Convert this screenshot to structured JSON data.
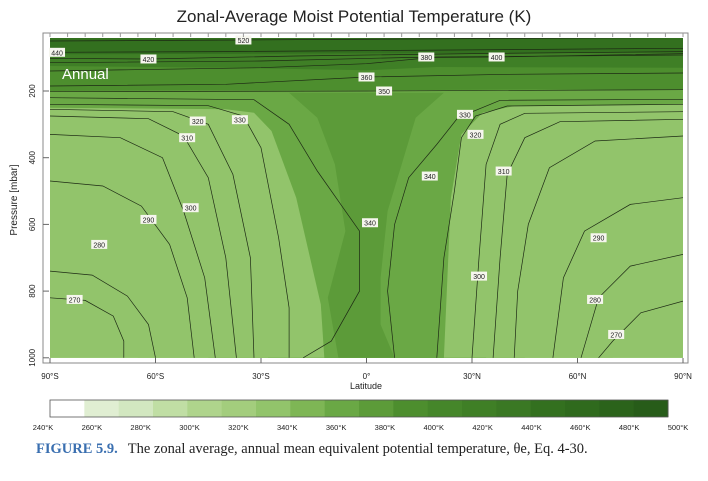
{
  "chart_data": {
    "type": "contour",
    "title": "Zonal-Average Moist Potential Temperature (K)",
    "panel_label": "Annual",
    "xlabel": "Latitude",
    "ylabel": "Pressure [mbar]",
    "xlim": [
      -90,
      90
    ],
    "ylim": [
      40,
      1000
    ],
    "y_inverted": true,
    "x_ticks": [
      {
        "value": -90,
        "label": "90°S"
      },
      {
        "value": -60,
        "label": "60°S"
      },
      {
        "value": -30,
        "label": "30°S"
      },
      {
        "value": 0,
        "label": "0°"
      },
      {
        "value": 30,
        "label": "30°N"
      },
      {
        "value": 60,
        "label": "60°N"
      },
      {
        "value": 90,
        "label": "90°N"
      }
    ],
    "y_ticks": [
      {
        "value": 200,
        "label": "200"
      },
      {
        "value": 400,
        "label": "400"
      },
      {
        "value": 600,
        "label": "600"
      },
      {
        "value": 800,
        "label": "800"
      },
      {
        "value": 1000,
        "label": "1000"
      }
    ],
    "fill_regions": [
      {
        "level": "270-280",
        "color": "#d6e8c4",
        "points": [
          [
            -90,
            810
          ],
          [
            -80,
            815
          ],
          [
            -72,
            860
          ],
          [
            -66,
            930
          ],
          [
            -65,
            1000
          ],
          [
            -90,
            1000
          ]
        ]
      },
      {
        "level": "280-300",
        "color": "#c0dea4",
        "points": [
          [
            -90,
            300
          ],
          [
            -70,
            310
          ],
          [
            -58,
            380
          ],
          [
            -50,
            520
          ],
          [
            -46,
            760
          ],
          [
            -45,
            1000
          ],
          [
            -90,
            1000
          ]
        ]
      },
      {
        "level": "300-320",
        "color": "#a9d185",
        "points": [
          [
            -90,
            290
          ],
          [
            -60,
            295
          ],
          [
            -40,
            330
          ],
          [
            -33,
            440
          ],
          [
            -30,
            800
          ],
          [
            -28,
            1000
          ],
          [
            -90,
            1000
          ]
        ]
      },
      {
        "level": "320-340",
        "color": "#92c46b",
        "points": [
          [
            -90,
            250
          ],
          [
            -40,
            255
          ],
          [
            -32,
            265
          ],
          [
            -27,
            320
          ],
          [
            -20,
            520
          ],
          [
            -13,
            840
          ],
          [
            -12,
            1000
          ],
          [
            -90,
            1000
          ]
        ]
      },
      {
        "level": "270-280",
        "color": "#d6e8c4",
        "points": [
          [
            90,
            860
          ],
          [
            80,
            880
          ],
          [
            72,
            950
          ],
          [
            70,
            1000
          ],
          [
            90,
            1000
          ]
        ]
      },
      {
        "level": "280-300",
        "color": "#c0dea4",
        "points": [
          [
            90,
            420
          ],
          [
            65,
            440
          ],
          [
            52,
            560
          ],
          [
            47,
            760
          ],
          [
            45,
            1000
          ],
          [
            90,
            1000
          ]
        ]
      },
      {
        "level": "300-320",
        "color": "#a9d185",
        "points": [
          [
            90,
            290
          ],
          [
            55,
            300
          ],
          [
            42,
            350
          ],
          [
            37,
            560
          ],
          [
            34,
            1000
          ],
          [
            90,
            1000
          ]
        ]
      },
      {
        "level": "320-340",
        "color": "#92c46b",
        "points": [
          [
            90,
            240
          ],
          [
            42,
            245
          ],
          [
            33,
            265
          ],
          [
            27,
            330
          ],
          [
            24,
            520
          ],
          [
            22,
            1000
          ],
          [
            90,
            1000
          ]
        ]
      },
      {
        "level": "350-360",
        "color": "#5c9b39",
        "points": [
          [
            -22,
            205
          ],
          [
            22,
            205
          ],
          [
            14,
            280
          ],
          [
            10,
            420
          ],
          [
            6,
            560
          ],
          [
            4,
            760
          ],
          [
            4,
            900
          ],
          [
            8,
            1000
          ],
          [
            -8,
            1000
          ],
          [
            -11,
            820
          ],
          [
            -6,
            620
          ],
          [
            -9,
            420
          ],
          [
            -14,
            280
          ]
        ]
      },
      {
        "level": "360-380",
        "color": "#4d8e2e",
        "points": [
          [
            -90,
            40
          ],
          [
            90,
            40
          ],
          [
            90,
            195
          ],
          [
            -90,
            200
          ]
        ]
      },
      {
        "level": "380-400",
        "color": "#3f7f26",
        "points": [
          [
            -90,
            40
          ],
          [
            90,
            40
          ],
          [
            90,
            130
          ],
          [
            20,
            128
          ],
          [
            0,
            138
          ],
          [
            -40,
            130
          ],
          [
            -90,
            125
          ]
        ]
      },
      {
        "level": "420-440",
        "color": "#33701f",
        "points": [
          [
            -90,
            40
          ],
          [
            90,
            40
          ],
          [
            90,
            85
          ],
          [
            -90,
            90
          ]
        ]
      }
    ],
    "contours": [
      {
        "value": 270,
        "points": [
          [
            -90,
            820
          ],
          [
            -80,
            828
          ],
          [
            -72,
            875
          ],
          [
            -69,
            950
          ],
          [
            -69,
            1000
          ]
        ]
      },
      {
        "value": 280,
        "points": [
          [
            -90,
            740
          ],
          [
            -78,
            752
          ],
          [
            -68,
            815
          ],
          [
            -62,
            900
          ],
          [
            -60,
            1000
          ]
        ]
      },
      {
        "value": 290,
        "points": [
          [
            -90,
            470
          ],
          [
            -75,
            485
          ],
          [
            -64,
            545
          ],
          [
            -56,
            660
          ],
          [
            -51,
            820
          ],
          [
            -49,
            1000
          ]
        ]
      },
      {
        "value": 300,
        "points": [
          [
            -90,
            330
          ],
          [
            -70,
            340
          ],
          [
            -58,
            400
          ],
          [
            -52,
            560
          ],
          [
            -46,
            760
          ],
          [
            -43,
            1000
          ]
        ]
      },
      {
        "value": 310,
        "points": [
          [
            -90,
            275
          ],
          [
            -62,
            283
          ],
          [
            -52,
            335
          ],
          [
            -45,
            460
          ],
          [
            -40,
            700
          ],
          [
            -37,
            1000
          ]
        ]
      },
      {
        "value": 320,
        "points": [
          [
            -90,
            255
          ],
          [
            -55,
            262
          ],
          [
            -45,
            300
          ],
          [
            -38,
            450
          ],
          [
            -33,
            700
          ],
          [
            -32,
            1000
          ]
        ]
      },
      {
        "value": 330,
        "points": [
          [
            -90,
            240
          ],
          [
            -45,
            244
          ],
          [
            -35,
            275
          ],
          [
            -30,
            370
          ],
          [
            -25,
            640
          ],
          [
            -22,
            850
          ],
          [
            -22,
            1000
          ]
        ]
      },
      {
        "value": 340,
        "points": [
          [
            -90,
            220
          ],
          [
            -32,
            226
          ],
          [
            -22,
            300
          ],
          [
            -14,
            440
          ],
          [
            -6,
            560
          ],
          [
            -2,
            620
          ],
          [
            -2,
            800
          ],
          [
            -10,
            950
          ],
          [
            -18,
            1000
          ]
        ]
      },
      {
        "value": 340,
        "points": [
          [
            90,
            225
          ],
          [
            38,
            228
          ],
          [
            26,
            280
          ],
          [
            20,
            360
          ],
          [
            12,
            460
          ],
          [
            8,
            600
          ],
          [
            6,
            800
          ],
          [
            8,
            1000
          ]
        ]
      },
      {
        "value": 330,
        "points": [
          [
            90,
            240
          ],
          [
            40,
            245
          ],
          [
            31,
            275
          ],
          [
            27,
            340
          ],
          [
            25,
            500
          ],
          [
            22,
            700
          ],
          [
            20,
            1000
          ]
        ]
      },
      {
        "value": 320,
        "points": [
          [
            90,
            262
          ],
          [
            45,
            267
          ],
          [
            38,
            300
          ],
          [
            34,
            420
          ],
          [
            32,
            700
          ],
          [
            30,
            1000
          ]
        ]
      },
      {
        "value": 310,
        "points": [
          [
            90,
            285
          ],
          [
            55,
            292
          ],
          [
            45,
            340
          ],
          [
            40,
            450
          ],
          [
            38,
            700
          ],
          [
            36,
            1000
          ]
        ]
      },
      {
        "value": 300,
        "points": [
          [
            90,
            335
          ],
          [
            65,
            350
          ],
          [
            52,
            430
          ],
          [
            46,
            600
          ],
          [
            43,
            800
          ],
          [
            42,
            1000
          ]
        ]
      },
      {
        "value": 290,
        "points": [
          [
            90,
            520
          ],
          [
            75,
            540
          ],
          [
            62,
            620
          ],
          [
            56,
            760
          ],
          [
            53,
            1000
          ]
        ]
      },
      {
        "value": 280,
        "points": [
          [
            90,
            690
          ],
          [
            75,
            725
          ],
          [
            66,
            820
          ],
          [
            61,
            1000
          ]
        ]
      },
      {
        "value": 270,
        "points": [
          [
            90,
            830
          ],
          [
            78,
            865
          ],
          [
            70,
            950
          ],
          [
            66,
            1000
          ]
        ]
      },
      {
        "value": 350,
        "points": [
          [
            -90,
            202
          ],
          [
            0,
            200
          ],
          [
            90,
            196
          ]
        ]
      },
      {
        "value": 360,
        "points": [
          [
            -90,
            185
          ],
          [
            -40,
            180
          ],
          [
            0,
            158
          ],
          [
            40,
            150
          ],
          [
            90,
            146
          ]
        ]
      },
      {
        "value": 380,
        "points": [
          [
            -90,
            140
          ],
          [
            -30,
            130
          ],
          [
            0,
            118
          ],
          [
            20,
            98
          ],
          [
            90,
            92
          ]
        ]
      },
      {
        "value": 400,
        "points": [
          [
            -90,
            115
          ],
          [
            -30,
            110
          ],
          [
            10,
            100
          ],
          [
            37,
            98
          ],
          [
            90,
            88
          ]
        ]
      },
      {
        "value": 420,
        "points": [
          [
            -90,
            102
          ],
          [
            -62,
            104
          ],
          [
            -20,
            95
          ],
          [
            30,
            88
          ],
          [
            90,
            82
          ]
        ]
      },
      {
        "value": 440,
        "points": [
          [
            -90,
            84
          ],
          [
            -40,
            82
          ],
          [
            40,
            76
          ],
          [
            90,
            72
          ]
        ]
      },
      {
        "value": 520,
        "points": [
          [
            -90,
            50
          ],
          [
            -35,
            47
          ],
          [
            30,
            43
          ],
          [
            90,
            40
          ]
        ]
      }
    ],
    "contour_labels": [
      {
        "value": "520",
        "lat": -35,
        "p": 47
      },
      {
        "value": "440",
        "lat": -88,
        "p": 84
      },
      {
        "value": "420",
        "lat": -62,
        "p": 104
      },
      {
        "value": "380",
        "lat": 17,
        "p": 98
      },
      {
        "value": "400",
        "lat": 37,
        "p": 98
      },
      {
        "value": "360",
        "lat": 0,
        "p": 158
      },
      {
        "value": "350",
        "lat": 5,
        "p": 200
      },
      {
        "value": "320",
        "lat": -48,
        "p": 290
      },
      {
        "value": "330",
        "lat": -36,
        "p": 286
      },
      {
        "value": "310",
        "lat": -51,
        "p": 340
      },
      {
        "value": "300",
        "lat": -50,
        "p": 550
      },
      {
        "value": "290",
        "lat": -62,
        "p": 585
      },
      {
        "value": "280",
        "lat": -76,
        "p": 660
      },
      {
        "value": "270",
        "lat": -83,
        "p": 825
      },
      {
        "value": "340",
        "lat": 18,
        "p": 455
      },
      {
        "value": "340",
        "lat": 1,
        "p": 595
      },
      {
        "value": "330",
        "lat": 28,
        "p": 270
      },
      {
        "value": "320",
        "lat": 31,
        "p": 330
      },
      {
        "value": "310",
        "lat": 39,
        "p": 440
      },
      {
        "value": "300",
        "lat": 32,
        "p": 755
      },
      {
        "value": "290",
        "lat": 66,
        "p": 640
      },
      {
        "value": "280",
        "lat": 65,
        "p": 825
      },
      {
        "value": "270",
        "lat": 71,
        "p": 930
      }
    ],
    "colorbar": {
      "ticks": [
        "240°K",
        "260°K",
        "280°K",
        "300°K",
        "320°K",
        "340°K",
        "360°K",
        "380°K",
        "400°K",
        "420°K",
        "440°K",
        "460°K",
        "480°K",
        "500°K"
      ],
      "range": [
        240,
        500
      ],
      "colors": [
        "#ffffff",
        "#e0eed2",
        "#d2e7c0",
        "#c0dea4",
        "#afd48c",
        "#a3cd7d",
        "#92c46b",
        "#7eb655",
        "#6aa845",
        "#5c9b39",
        "#4d8e2e",
        "#45862a",
        "#3f7f26",
        "#3a7824",
        "#33701f",
        "#2f6a1d",
        "#2b631b",
        "#275c19"
      ]
    },
    "background_color": "#6aa845"
  },
  "caption": {
    "figure_number": "FIGURE 5.9.",
    "text": "The zonal average, annual mean equivalent potential temperature, θe, Eq. 4-30."
  }
}
